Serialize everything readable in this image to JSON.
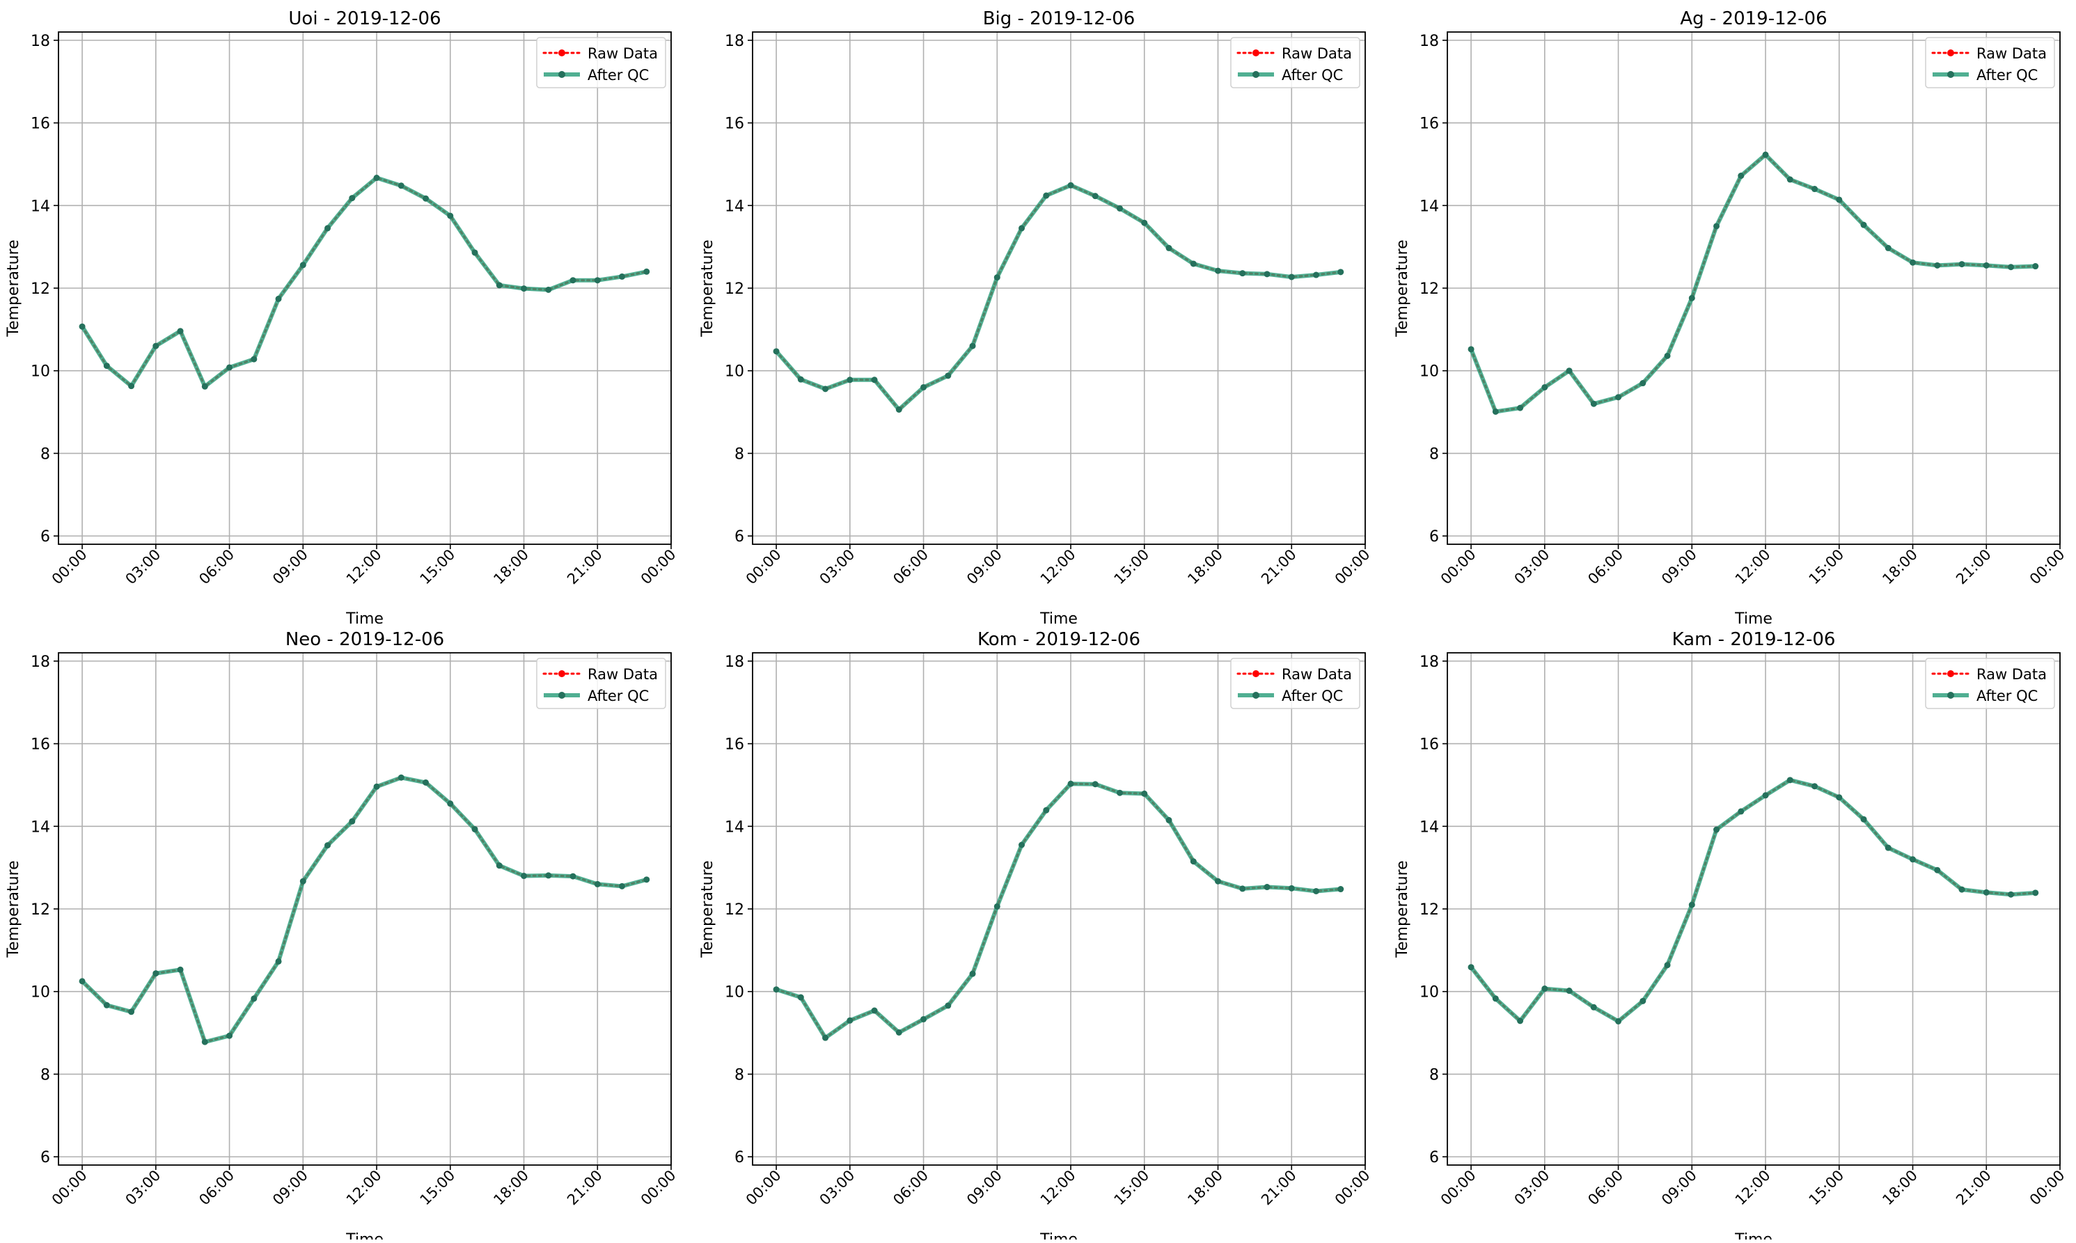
{
  "colors": {
    "raw": "#ff0000",
    "qc": "#2a9d7a",
    "qc_marker": "#25715c",
    "grid": "#b0b0b0",
    "axes": "#000000"
  },
  "legend": {
    "raw_label": "Raw Data",
    "qc_label": "After QC",
    "placement": "top-right"
  },
  "chart_data": [
    {
      "type": "line",
      "title": "Uoi - 2019-12-06",
      "xlabel": "Time",
      "ylabel": "Temperature",
      "ylim": [
        5.8,
        18.2
      ],
      "yticks": [
        6,
        8,
        10,
        12,
        14,
        16,
        18
      ],
      "xlim": [
        "2019-12-05 23:02",
        "2019-12-07 00:00"
      ],
      "xticks": [
        "00:00",
        "03:00",
        "06:00",
        "09:00",
        "12:00",
        "15:00",
        "18:00",
        "21:00",
        "00:00"
      ],
      "grid": true,
      "x": [
        "00:00",
        "01:00",
        "02:00",
        "03:00",
        "04:00",
        "05:00",
        "06:00",
        "07:00",
        "08:00",
        "09:00",
        "10:00",
        "11:00",
        "12:00",
        "13:00",
        "14:00",
        "15:00",
        "16:00",
        "17:00",
        "18:00",
        "19:00",
        "20:00",
        "21:00",
        "22:00",
        "23:00"
      ],
      "series": [
        {
          "name": "Raw Data",
          "values": [
            11.07,
            10.12,
            9.63,
            10.6,
            10.96,
            9.62,
            10.08,
            10.28,
            11.74,
            12.56,
            13.45,
            14.18,
            14.67,
            14.48,
            14.17,
            13.75,
            12.86,
            12.07,
            11.99,
            11.96,
            12.19,
            12.19,
            12.28,
            12.4
          ]
        },
        {
          "name": "After QC",
          "values": [
            11.07,
            10.12,
            9.63,
            10.6,
            10.96,
            9.62,
            10.08,
            10.28,
            11.74,
            12.56,
            13.45,
            14.18,
            14.67,
            14.48,
            14.17,
            13.75,
            12.86,
            12.07,
            11.99,
            11.96,
            12.19,
            12.19,
            12.28,
            12.4
          ]
        }
      ]
    },
    {
      "type": "line",
      "title": "Big - 2019-12-06",
      "xlabel": "Time",
      "ylabel": "Temperature",
      "ylim": [
        5.8,
        18.2
      ],
      "yticks": [
        6,
        8,
        10,
        12,
        14,
        16,
        18
      ],
      "xlim": [
        "2019-12-05 23:02",
        "2019-12-07 00:00"
      ],
      "xticks": [
        "00:00",
        "03:00",
        "06:00",
        "09:00",
        "12:00",
        "15:00",
        "18:00",
        "21:00",
        "00:00"
      ],
      "grid": true,
      "x": [
        "00:00",
        "01:00",
        "02:00",
        "03:00",
        "04:00",
        "05:00",
        "06:00",
        "07:00",
        "08:00",
        "09:00",
        "10:00",
        "11:00",
        "12:00",
        "13:00",
        "14:00",
        "15:00",
        "16:00",
        "17:00",
        "18:00",
        "19:00",
        "20:00",
        "21:00",
        "22:00",
        "23:00"
      ],
      "series": [
        {
          "name": "Raw Data",
          "values": [
            10.47,
            9.79,
            9.56,
            9.78,
            9.78,
            9.06,
            9.6,
            9.88,
            10.6,
            12.26,
            13.45,
            14.24,
            14.49,
            14.23,
            13.93,
            13.58,
            12.97,
            12.59,
            12.42,
            12.36,
            12.34,
            12.27,
            12.32,
            12.39
          ]
        },
        {
          "name": "After QC",
          "values": [
            10.47,
            9.79,
            9.56,
            9.78,
            9.78,
            9.06,
            9.6,
            9.88,
            10.6,
            12.26,
            13.45,
            14.24,
            14.49,
            14.23,
            13.93,
            13.58,
            12.97,
            12.59,
            12.42,
            12.36,
            12.34,
            12.27,
            12.32,
            12.39
          ]
        }
      ]
    },
    {
      "type": "line",
      "title": "Ag - 2019-12-06",
      "xlabel": "Time",
      "ylabel": "Temperature",
      "ylim": [
        5.8,
        18.2
      ],
      "yticks": [
        6,
        8,
        10,
        12,
        14,
        16,
        18
      ],
      "xlim": [
        "2019-12-05 23:02",
        "2019-12-07 00:00"
      ],
      "xticks": [
        "00:00",
        "03:00",
        "06:00",
        "09:00",
        "12:00",
        "15:00",
        "18:00",
        "21:00",
        "00:00"
      ],
      "grid": true,
      "x": [
        "00:00",
        "01:00",
        "02:00",
        "03:00",
        "04:00",
        "05:00",
        "06:00",
        "07:00",
        "08:00",
        "09:00",
        "10:00",
        "11:00",
        "12:00",
        "13:00",
        "14:00",
        "15:00",
        "16:00",
        "17:00",
        "18:00",
        "19:00",
        "20:00",
        "21:00",
        "22:00",
        "23:00"
      ],
      "series": [
        {
          "name": "Raw Data",
          "values": [
            10.52,
            9.01,
            9.1,
            9.6,
            10.0,
            9.2,
            9.36,
            9.7,
            10.36,
            11.76,
            13.5,
            14.72,
            15.23,
            14.63,
            14.4,
            14.14,
            13.53,
            12.97,
            12.62,
            12.55,
            12.58,
            12.55,
            12.51,
            12.53
          ]
        },
        {
          "name": "After QC",
          "values": [
            10.52,
            9.01,
            9.1,
            9.6,
            10.0,
            9.2,
            9.36,
            9.7,
            10.36,
            11.76,
            13.5,
            14.72,
            15.23,
            14.63,
            14.4,
            14.14,
            13.53,
            12.97,
            12.62,
            12.55,
            12.58,
            12.55,
            12.51,
            12.53
          ]
        }
      ]
    },
    {
      "type": "line",
      "title": "Neo - 2019-12-06",
      "xlabel": "Time",
      "ylabel": "Temperature",
      "ylim": [
        5.8,
        18.2
      ],
      "yticks": [
        6,
        8,
        10,
        12,
        14,
        16,
        18
      ],
      "xlim": [
        "2019-12-05 23:02",
        "2019-12-07 00:00"
      ],
      "xticks": [
        "00:00",
        "03:00",
        "06:00",
        "09:00",
        "12:00",
        "15:00",
        "18:00",
        "21:00",
        "00:00"
      ],
      "grid": true,
      "x": [
        "00:00",
        "01:00",
        "02:00",
        "03:00",
        "04:00",
        "05:00",
        "06:00",
        "07:00",
        "08:00",
        "09:00",
        "10:00",
        "11:00",
        "12:00",
        "13:00",
        "14:00",
        "15:00",
        "16:00",
        "17:00",
        "18:00",
        "19:00",
        "20:00",
        "21:00",
        "22:00",
        "23:00"
      ],
      "series": [
        {
          "name": "Raw Data",
          "values": [
            10.25,
            9.67,
            9.51,
            10.44,
            10.53,
            8.78,
            8.93,
            9.83,
            10.73,
            12.67,
            13.54,
            14.12,
            14.96,
            15.18,
            15.06,
            14.55,
            13.93,
            13.05,
            12.8,
            12.81,
            12.79,
            12.6,
            12.55,
            12.71
          ]
        },
        {
          "name": "After QC",
          "values": [
            10.25,
            9.67,
            9.51,
            10.44,
            10.53,
            8.78,
            8.93,
            9.83,
            10.73,
            12.67,
            13.54,
            14.12,
            14.96,
            15.18,
            15.06,
            14.55,
            13.93,
            13.05,
            12.8,
            12.81,
            12.79,
            12.6,
            12.55,
            12.71
          ]
        }
      ]
    },
    {
      "type": "line",
      "title": "Kom - 2019-12-06",
      "xlabel": "Time",
      "ylabel": "Temperature",
      "ylim": [
        5.8,
        18.2
      ],
      "yticks": [
        6,
        8,
        10,
        12,
        14,
        16,
        18
      ],
      "xlim": [
        "2019-12-05 23:02",
        "2019-12-07 00:00"
      ],
      "xticks": [
        "00:00",
        "03:00",
        "06:00",
        "09:00",
        "12:00",
        "15:00",
        "18:00",
        "21:00",
        "00:00"
      ],
      "grid": true,
      "x": [
        "00:00",
        "01:00",
        "02:00",
        "03:00",
        "04:00",
        "05:00",
        "06:00",
        "07:00",
        "08:00",
        "09:00",
        "10:00",
        "11:00",
        "12:00",
        "13:00",
        "14:00",
        "15:00",
        "16:00",
        "17:00",
        "18:00",
        "19:00",
        "20:00",
        "21:00",
        "22:00",
        "23:00"
      ],
      "series": [
        {
          "name": "Raw Data",
          "values": [
            10.05,
            9.86,
            8.88,
            9.3,
            9.54,
            9.01,
            9.33,
            9.66,
            10.43,
            12.06,
            13.55,
            14.39,
            15.03,
            15.02,
            14.81,
            14.79,
            14.15,
            13.15,
            12.67,
            12.49,
            12.53,
            12.5,
            12.43,
            12.48
          ]
        },
        {
          "name": "After QC",
          "values": [
            10.05,
            9.86,
            8.88,
            9.3,
            9.54,
            9.01,
            9.33,
            9.66,
            10.43,
            12.06,
            13.55,
            14.39,
            15.03,
            15.02,
            14.81,
            14.79,
            14.15,
            13.15,
            12.67,
            12.49,
            12.53,
            12.5,
            12.43,
            12.48
          ]
        }
      ]
    },
    {
      "type": "line",
      "title": "Kam - 2019-12-06",
      "xlabel": "Time",
      "ylabel": "Temperature",
      "ylim": [
        5.8,
        18.2
      ],
      "yticks": [
        6,
        8,
        10,
        12,
        14,
        16,
        18
      ],
      "xlim": [
        "2019-12-05 23:02",
        "2019-12-07 00:00"
      ],
      "xticks": [
        "00:00",
        "03:00",
        "06:00",
        "09:00",
        "12:00",
        "15:00",
        "18:00",
        "21:00",
        "00:00"
      ],
      "grid": true,
      "x": [
        "00:00",
        "01:00",
        "02:00",
        "03:00",
        "04:00",
        "05:00",
        "06:00",
        "07:00",
        "08:00",
        "09:00",
        "10:00",
        "11:00",
        "12:00",
        "13:00",
        "14:00",
        "15:00",
        "16:00",
        "17:00",
        "18:00",
        "19:00",
        "20:00",
        "21:00",
        "22:00",
        "23:00"
      ],
      "series": [
        {
          "name": "Raw Data",
          "values": [
            10.59,
            9.83,
            9.29,
            10.07,
            10.02,
            9.62,
            9.28,
            9.77,
            10.64,
            12.1,
            13.92,
            14.36,
            14.75,
            15.12,
            14.97,
            14.7,
            14.17,
            13.48,
            13.2,
            12.94,
            12.47,
            12.4,
            12.35,
            12.39
          ]
        },
        {
          "name": "After QC",
          "values": [
            10.59,
            9.83,
            9.29,
            10.07,
            10.02,
            9.62,
            9.28,
            9.77,
            10.64,
            12.1,
            13.92,
            14.36,
            14.75,
            15.12,
            14.97,
            14.7,
            14.17,
            13.48,
            13.2,
            12.94,
            12.47,
            12.4,
            12.35,
            12.39
          ]
        }
      ]
    }
  ]
}
